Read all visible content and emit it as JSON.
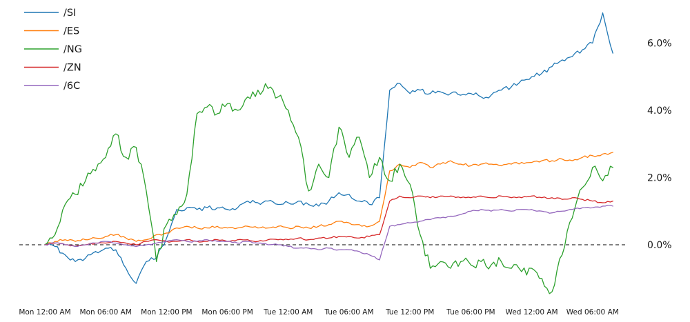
{
  "chart_data": {
    "type": "line",
    "title": "",
    "xlabel": "",
    "ylabel": "",
    "grid": false,
    "legend": {
      "position": "upper-left",
      "entries": [
        "/SI",
        "/ES",
        "/NG",
        "/ZN",
        "/6C"
      ]
    },
    "zero_line": {
      "value": 0,
      "style": "dashed",
      "color": "#000000"
    },
    "x_axis": {
      "unit": "hours since Mon 12:00 AM",
      "tick_hours": [
        0,
        6,
        12,
        18,
        24,
        30,
        36,
        42,
        48,
        54
      ],
      "tick_labels": [
        "Mon 12:00 AM",
        "Mon 06:00 AM",
        "Mon 12:00 PM",
        "Mon 06:00 PM",
        "Tue 12:00 AM",
        "Tue 06:00 AM",
        "Tue 12:00 PM",
        "Tue 06:00 PM",
        "Wed 12:00 AM",
        "Wed 06:00 AM"
      ]
    },
    "y_axis": {
      "side": "right",
      "tick_values": [
        0,
        2,
        4,
        6
      ],
      "tick_labels": [
        "0.0%",
        "2.0%",
        "4.0%",
        "6.0%"
      ],
      "range": [
        -1.7,
        7.2
      ]
    },
    "x_hours": [
      0,
      1,
      2,
      3,
      4,
      5,
      6,
      7,
      8,
      9,
      10,
      11,
      12,
      13,
      14,
      15,
      16,
      17,
      18,
      19,
      20,
      21,
      22,
      23,
      24,
      25,
      26,
      27,
      28,
      29,
      30,
      31,
      32,
      33,
      34,
      35,
      36,
      37,
      38,
      39,
      40,
      41,
      42,
      43,
      44,
      45,
      46,
      47,
      48,
      49,
      50,
      51,
      52,
      53,
      54,
      55,
      56
    ],
    "series": [
      {
        "name": "/SI",
        "color": "#1f77b4",
        "jitter": 0.07,
        "values": [
          0.0,
          -0.05,
          -0.3,
          -0.5,
          -0.4,
          -0.2,
          -0.1,
          -0.15,
          -0.7,
          -1.15,
          -0.5,
          -0.4,
          0.2,
          1.05,
          1.1,
          1.05,
          1.1,
          1.1,
          1.05,
          1.1,
          1.3,
          1.25,
          1.3,
          1.2,
          1.25,
          1.3,
          1.2,
          1.15,
          1.3,
          1.55,
          1.5,
          1.3,
          1.2,
          1.4,
          4.6,
          4.8,
          4.5,
          4.6,
          4.5,
          4.55,
          4.5,
          4.45,
          4.5,
          4.4,
          4.45,
          4.6,
          4.7,
          4.9,
          5.0,
          5.1,
          5.3,
          5.5,
          5.6,
          5.8,
          6.0,
          6.9,
          5.7
        ]
      },
      {
        "name": "/ES",
        "color": "#ff7f0e",
        "jitter": 0.04,
        "values": [
          0.0,
          0.1,
          0.15,
          0.1,
          0.15,
          0.2,
          0.25,
          0.3,
          0.2,
          0.1,
          0.15,
          0.3,
          0.35,
          0.5,
          0.55,
          0.5,
          0.5,
          0.55,
          0.5,
          0.5,
          0.55,
          0.5,
          0.5,
          0.55,
          0.5,
          0.55,
          0.5,
          0.55,
          0.6,
          0.7,
          0.65,
          0.6,
          0.55,
          0.7,
          2.2,
          2.4,
          2.3,
          2.45,
          2.3,
          2.4,
          2.5,
          2.4,
          2.35,
          2.4,
          2.4,
          2.35,
          2.4,
          2.45,
          2.45,
          2.5,
          2.5,
          2.55,
          2.5,
          2.6,
          2.65,
          2.7,
          2.75
        ]
      },
      {
        "name": "/NG",
        "color": "#2ca02c",
        "jitter": 0.16,
        "values": [
          0.0,
          0.3,
          1.2,
          1.5,
          1.9,
          2.2,
          2.6,
          3.3,
          2.6,
          2.9,
          1.6,
          -0.5,
          0.6,
          0.9,
          1.5,
          3.9,
          4.1,
          3.9,
          4.2,
          4.0,
          4.4,
          4.6,
          4.65,
          4.4,
          4.0,
          3.2,
          1.6,
          2.4,
          2.0,
          3.5,
          2.6,
          3.2,
          2.0,
          2.6,
          1.9,
          2.4,
          1.8,
          0.3,
          -0.7,
          -0.5,
          -0.7,
          -0.5,
          -0.6,
          -0.5,
          -0.6,
          -0.5,
          -0.7,
          -0.8,
          -0.7,
          -1.0,
          -1.4,
          -0.3,
          0.8,
          1.7,
          2.3,
          1.9,
          2.3
        ]
      },
      {
        "name": "/ZN",
        "color": "#d62728",
        "jitter": 0.025,
        "values": [
          0.0,
          0.05,
          0.0,
          -0.05,
          0.0,
          0.05,
          0.05,
          0.1,
          0.05,
          0.0,
          0.1,
          0.15,
          0.1,
          0.1,
          0.15,
          0.1,
          0.1,
          0.15,
          0.1,
          0.15,
          0.15,
          0.1,
          0.15,
          0.15,
          0.15,
          0.2,
          0.15,
          0.2,
          0.2,
          0.25,
          0.25,
          0.2,
          0.25,
          0.3,
          1.3,
          1.45,
          1.4,
          1.45,
          1.4,
          1.45,
          1.45,
          1.4,
          1.4,
          1.45,
          1.4,
          1.45,
          1.4,
          1.4,
          1.45,
          1.4,
          1.4,
          1.35,
          1.4,
          1.35,
          1.3,
          1.25,
          1.3
        ]
      },
      {
        "name": "/6C",
        "color": "#9467bd",
        "jitter": 0.025,
        "values": [
          0.0,
          0.05,
          0.0,
          -0.05,
          0.0,
          0.05,
          0.1,
          0.05,
          0.0,
          -0.05,
          0.0,
          0.05,
          0.1,
          0.15,
          0.1,
          0.1,
          0.15,
          0.1,
          0.1,
          0.05,
          0.1,
          0.05,
          0.0,
          0.0,
          -0.05,
          -0.1,
          -0.1,
          -0.15,
          -0.1,
          -0.15,
          -0.15,
          -0.2,
          -0.3,
          -0.45,
          0.55,
          0.6,
          0.65,
          0.7,
          0.75,
          0.8,
          0.85,
          0.9,
          1.0,
          1.05,
          1.0,
          1.05,
          1.0,
          1.05,
          1.05,
          1.0,
          0.95,
          1.0,
          1.05,
          1.1,
          1.1,
          1.15,
          1.15
        ]
      }
    ]
  }
}
